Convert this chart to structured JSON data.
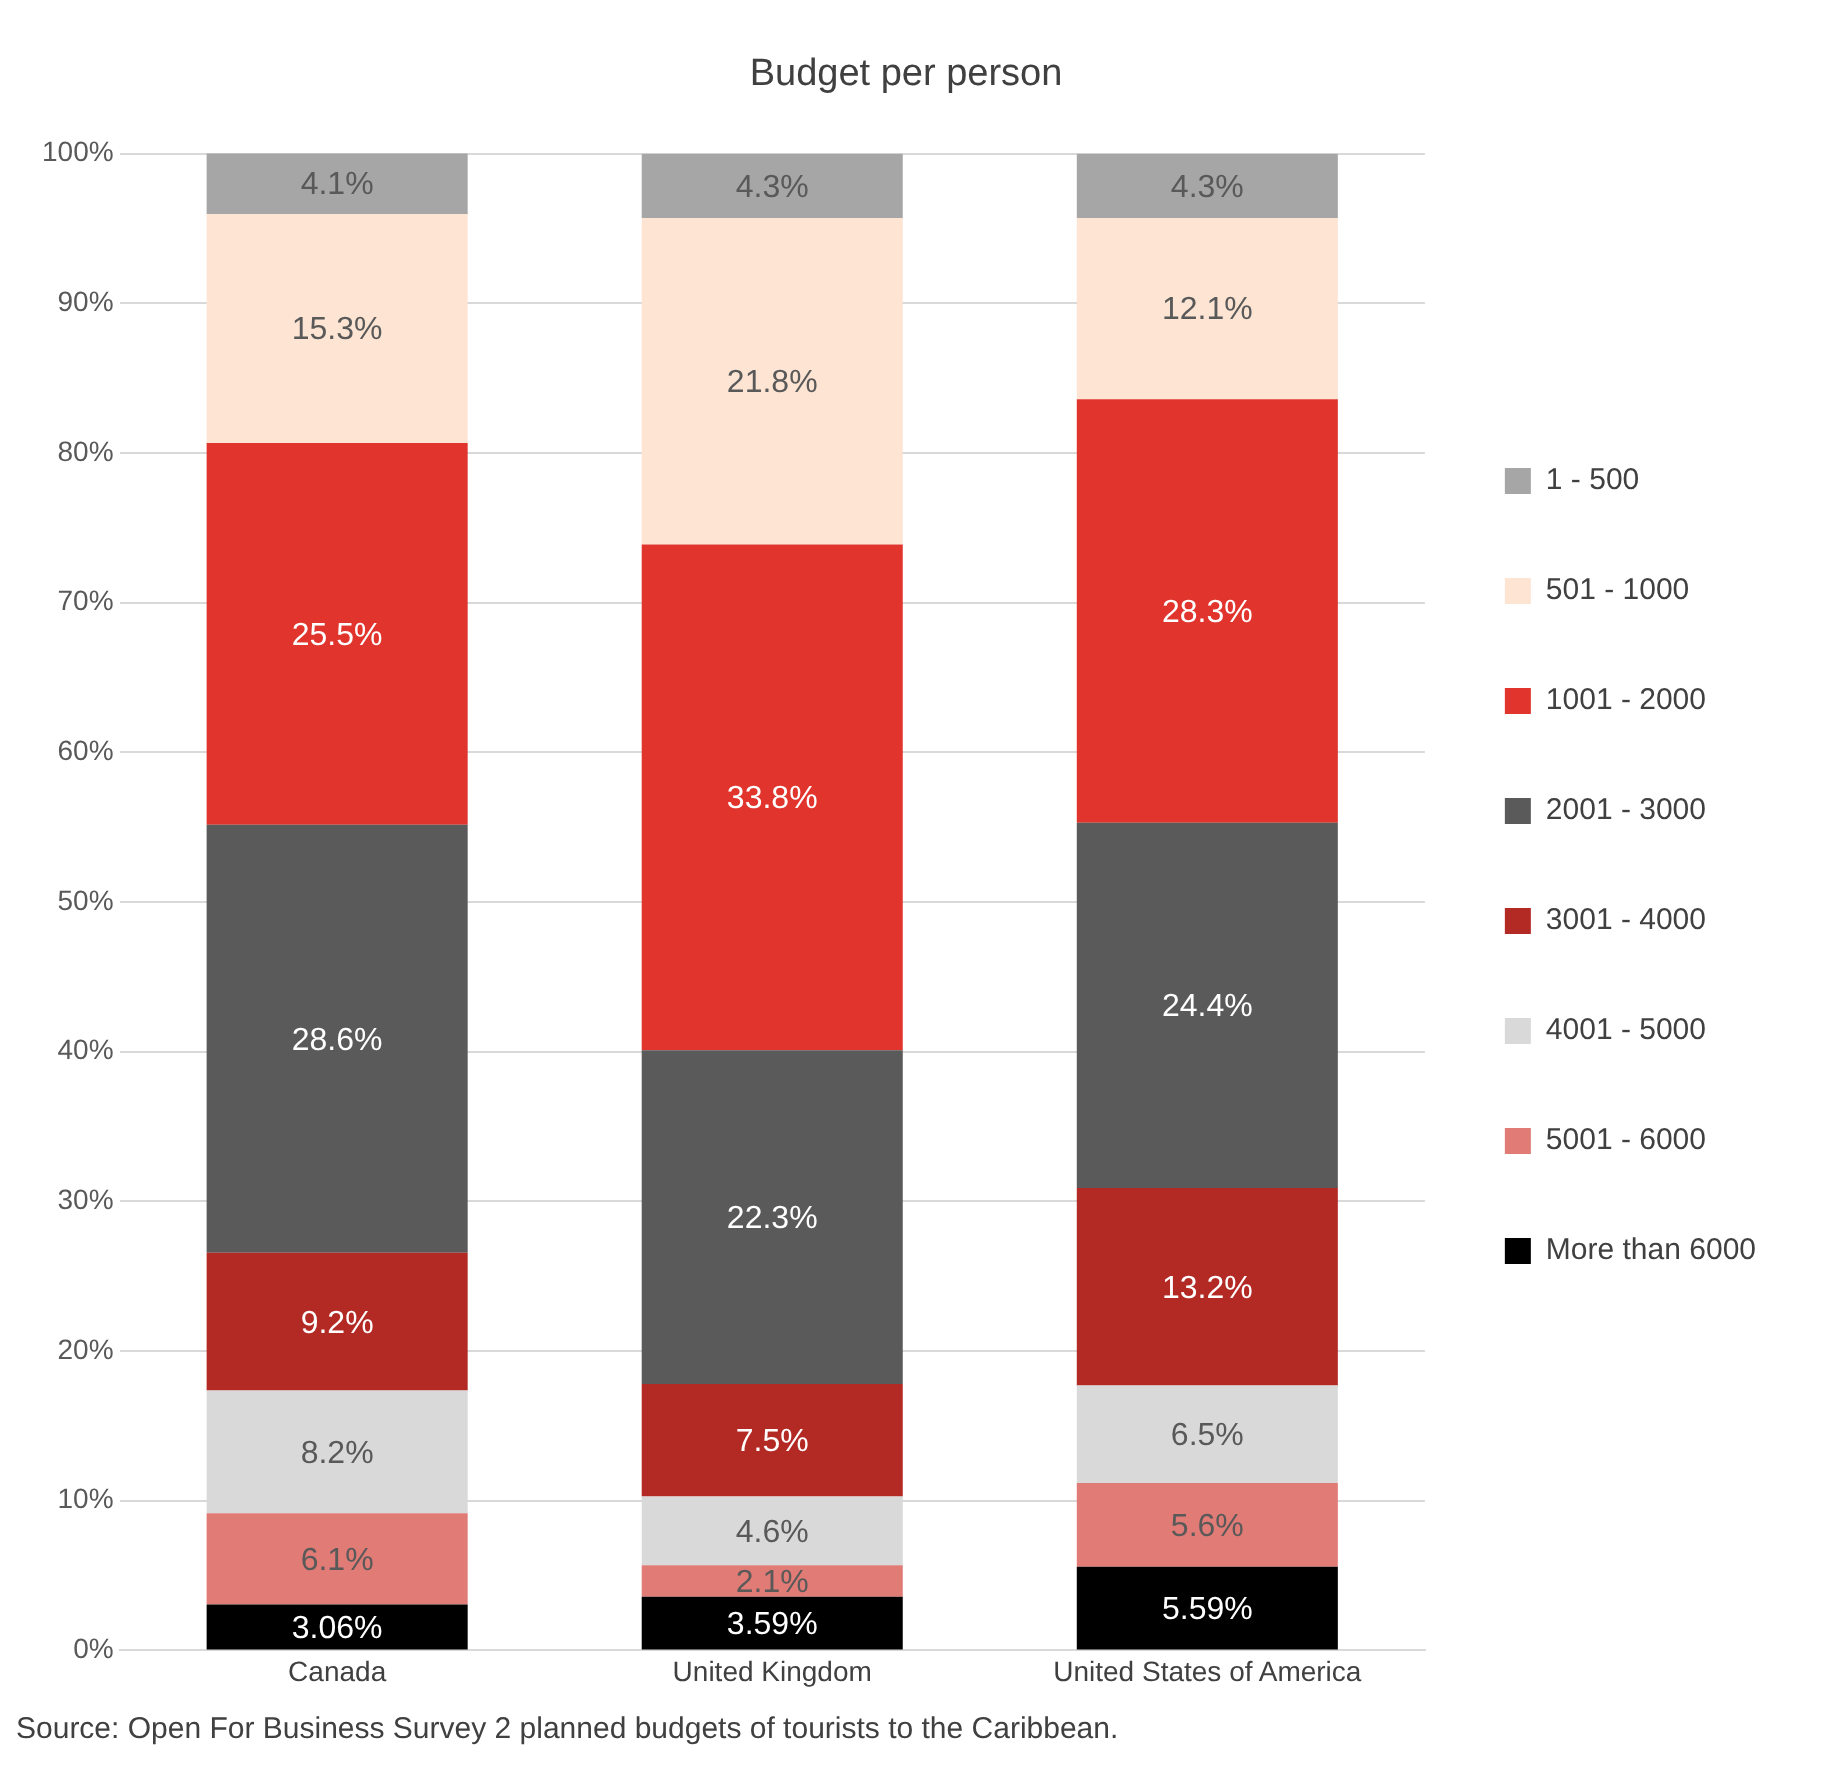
{
  "chart_data": {
    "type": "bar",
    "title": "Budget per person",
    "stacked": true,
    "grid": "y",
    "legend": "right",
    "categories": [
      "Canada",
      "United Kingdom",
      "United States of America"
    ],
    "ylim": [
      0,
      100
    ],
    "yticks": [
      {
        "value": 0,
        "label": "0%"
      },
      {
        "value": 10,
        "label": "10%"
      },
      {
        "value": 20,
        "label": "20%"
      },
      {
        "value": 30,
        "label": "30%"
      },
      {
        "value": 40,
        "label": "40%"
      },
      {
        "value": 50,
        "label": "50%"
      },
      {
        "value": 60,
        "label": "60%"
      },
      {
        "value": 70,
        "label": "70%"
      },
      {
        "value": 80,
        "label": "80%"
      },
      {
        "value": 90,
        "label": "90%"
      },
      {
        "value": 100,
        "label": "100%"
      }
    ],
    "series": [
      {
        "name": "More than 6000",
        "color": "#000000",
        "values": [
          3.06,
          3.59,
          5.59
        ],
        "value_labels": [
          "3.06%",
          "3.59%",
          "5.59%"
        ]
      },
      {
        "name": "5001 - 6000",
        "color": "#e07b76",
        "values": [
          6.1,
          2.1,
          5.6
        ],
        "value_labels": [
          "6.1%",
          "2.1%",
          "5.6%"
        ]
      },
      {
        "name": "4001 - 5000",
        "color": "#d9d9d9",
        "values": [
          8.2,
          4.6,
          6.5
        ],
        "value_labels": [
          "8.2%",
          "4.6%",
          "6.5%"
        ]
      },
      {
        "name": "3001 - 4000",
        "color": "#b32a25",
        "values": [
          9.2,
          7.5,
          13.2
        ],
        "value_labels": [
          "9.2%",
          "7.5%",
          "13.2%"
        ]
      },
      {
        "name": "2001 - 3000",
        "color": "#5a5a5a",
        "values": [
          28.6,
          22.3,
          24.4
        ],
        "value_labels": [
          "28.6%",
          "22.3%",
          "24.4%"
        ]
      },
      {
        "name": "1001 - 2000",
        "color": "#e0342c",
        "values": [
          25.5,
          33.8,
          28.3
        ],
        "value_labels": [
          "25.5%",
          "33.8%",
          "28.3%"
        ]
      },
      {
        "name": "501 - 1000",
        "color": "#fde4d3",
        "values": [
          15.3,
          21.8,
          12.1
        ],
        "value_labels": [
          "15.3%",
          "21.8%",
          "12.1%"
        ]
      },
      {
        "name": "1 - 500",
        "color": "#a6a6a6",
        "values": [
          4.1,
          4.3,
          4.3
        ],
        "value_labels": [
          "4.1%",
          "4.3%",
          "4.3%"
        ]
      }
    ],
    "annotations": [
      "Source: Open For Business Survey 2 planned budgets of tourists to the Caribbean."
    ]
  }
}
